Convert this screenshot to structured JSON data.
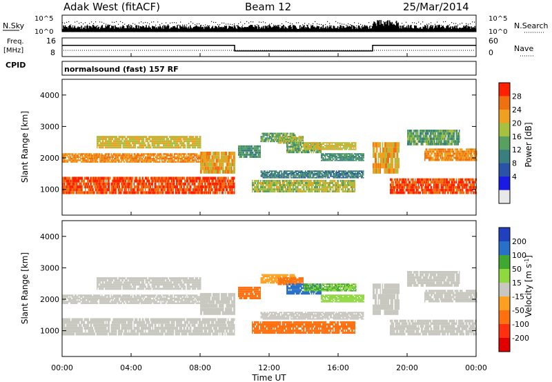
{
  "header": {
    "site": "Adak West (fitACF)",
    "beam": "Beam 12",
    "date": "25/Mar/2014"
  },
  "noise_panel": {
    "left_label": "N.Sky",
    "right_label": "N.Search",
    "left_ticks": [
      "10^5",
      "10^0"
    ],
    "right_ticks": [
      "10^5",
      "10^0"
    ]
  },
  "freq_panel": {
    "left_label_1": "Freq.",
    "left_label_2": "[MHz]",
    "left_ticks": [
      "16",
      "8"
    ],
    "right_label": "Nave",
    "right_ticks": [
      "60",
      "0"
    ]
  },
  "cpid_panel": {
    "label": "CPID",
    "mode_text": "normalsound (fast) 157 RF"
  },
  "range_axis": {
    "label": "Slant Range [km]",
    "ticks": [
      "4000",
      "3000",
      "2000",
      "1000"
    ]
  },
  "time_axis": {
    "label": "Time UT",
    "ticks": [
      "00:00",
      "04:00",
      "08:00",
      "12:00",
      "16:00",
      "20:00",
      "00:00"
    ]
  },
  "power_scale": {
    "label": "Power [dB]",
    "ticks": [
      "28",
      "24",
      "20",
      "16",
      "12",
      "8",
      "4"
    ],
    "colors": [
      "#e8e8e8",
      "#1a1ae6",
      "#2a52a8",
      "#3a7f80",
      "#58a060",
      "#a8c040",
      "#f0a020",
      "#f07010",
      "#ff2000"
    ]
  },
  "velocity_scale": {
    "label_main": "Velocity [m s",
    "label_exp": "-1",
    "label_end": "]",
    "ticks": [
      "200",
      "100",
      "50",
      "15",
      "-15",
      "-50",
      "-100",
      "-200"
    ],
    "colors": [
      "#2040c0",
      "#2870c8",
      "#40a830",
      "#90d840",
      "#c8c8c0",
      "#ffa020",
      "#ff7010",
      "#ff3010",
      "#e00000"
    ]
  },
  "chart_data": {
    "type": "heatmap",
    "x_range_hours": [
      0,
      24
    ],
    "y_range_km": [
      180,
      4500
    ],
    "frequency_mhz": [
      {
        "from": "00:00",
        "to": "10:00",
        "value": 13
      },
      {
        "from": "10:00",
        "to": "18:00",
        "value": 10
      },
      {
        "from": "18:00",
        "to": "24:00",
        "value": 13
      }
    ],
    "bands": [
      {
        "t0": 0,
        "t1": 10,
        "r0": 850,
        "r1": 1400,
        "power": 28,
        "velocity": -5
      },
      {
        "t0": 0,
        "t1": 8.5,
        "r0": 1850,
        "r1": 2150,
        "power": 24,
        "velocity": -5
      },
      {
        "t0": 2,
        "t1": 8,
        "r0": 2300,
        "r1": 2700,
        "power": 20,
        "velocity": -5
      },
      {
        "t0": 8,
        "t1": 10,
        "r0": 1500,
        "r1": 2200,
        "power": 22,
        "velocity": -5
      },
      {
        "t0": 10.2,
        "t1": 11.5,
        "r0": 2000,
        "r1": 2400,
        "power": 12,
        "velocity": -60
      },
      {
        "t0": 11.5,
        "t1": 13.5,
        "r0": 2500,
        "r1": 2800,
        "power": 14,
        "velocity": -40
      },
      {
        "t0": 12.5,
        "t1": 14,
        "r0": 2450,
        "r1": 2700,
        "power": 18,
        "velocity": -80
      },
      {
        "t0": 13,
        "t1": 15,
        "r0": 2150,
        "r1": 2500,
        "power": 14,
        "velocity": 150
      },
      {
        "t0": 14,
        "t1": 17,
        "r0": 2250,
        "r1": 2500,
        "power": 20,
        "velocity": 50
      },
      {
        "t0": 15,
        "t1": 17.5,
        "r0": 1900,
        "r1": 2150,
        "power": 12,
        "velocity": 40
      },
      {
        "t0": 11,
        "t1": 17,
        "r0": 900,
        "r1": 1300,
        "power": 18,
        "velocity": -80
      },
      {
        "t0": 11.5,
        "t1": 17.5,
        "r0": 1350,
        "r1": 1600,
        "power": 10,
        "velocity": -5
      },
      {
        "t0": 18,
        "t1": 19.5,
        "r0": 1500,
        "r1": 2500,
        "power": 22,
        "velocity": -5
      },
      {
        "t0": 19,
        "t1": 24,
        "r0": 850,
        "r1": 1350,
        "power": 28,
        "velocity": -5
      },
      {
        "t0": 21,
        "t1": 24,
        "r0": 1900,
        "r1": 2300,
        "power": 24,
        "velocity": -5
      },
      {
        "t0": 20,
        "t1": 23,
        "r0": 2400,
        "r1": 2900,
        "power": 14,
        "velocity": -5
      }
    ]
  }
}
